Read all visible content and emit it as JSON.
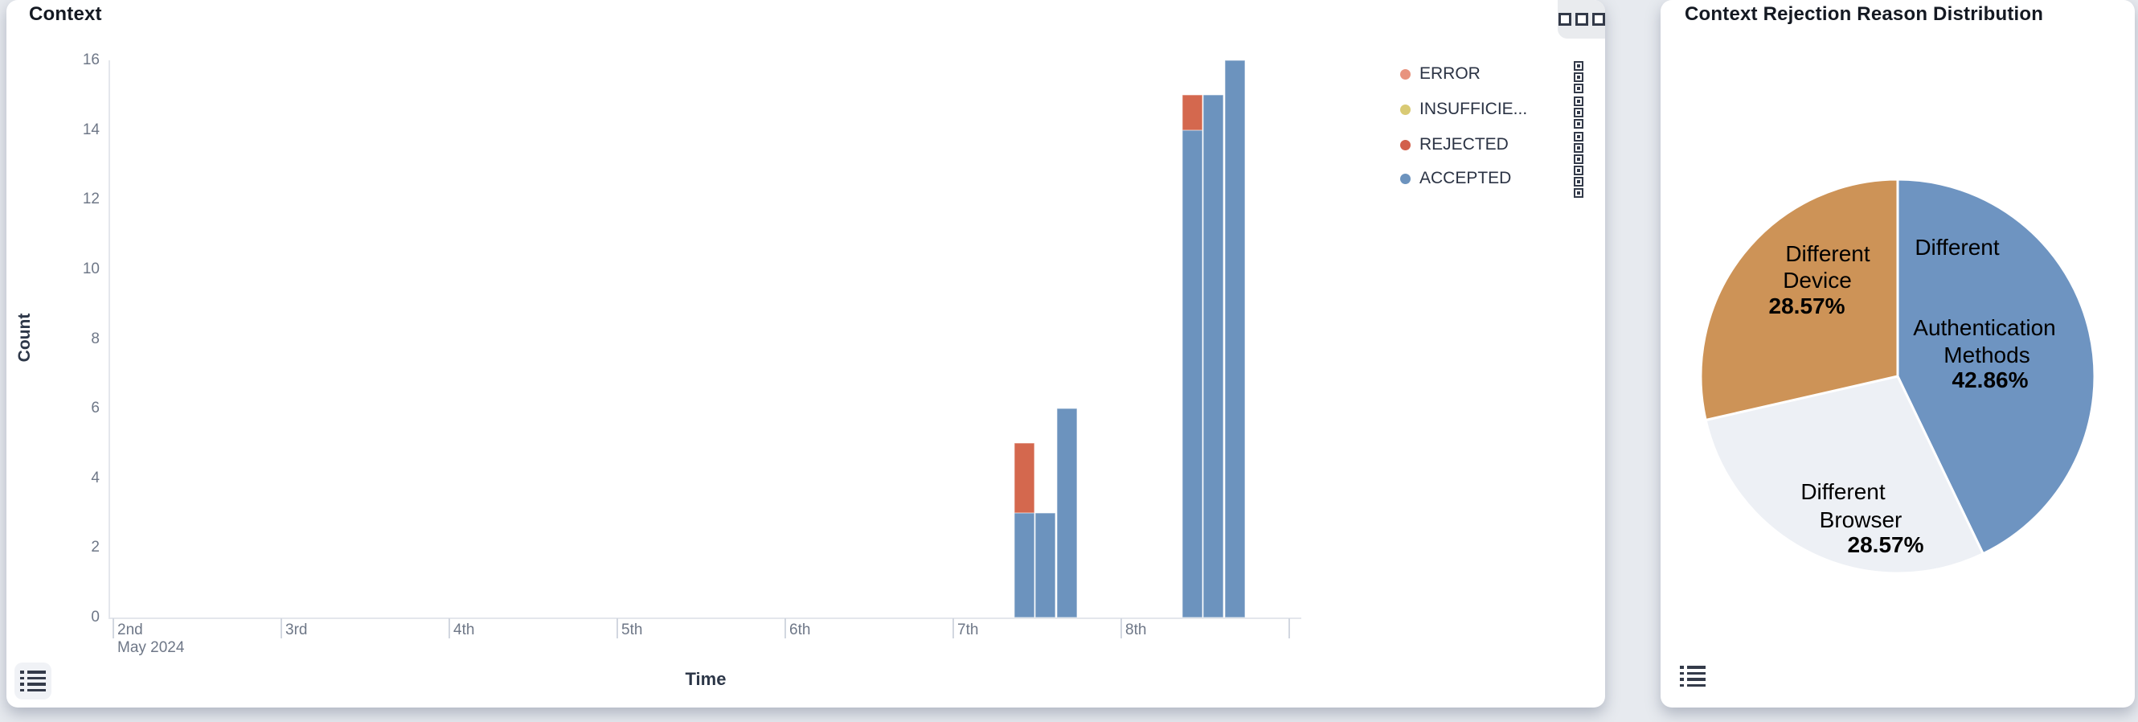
{
  "left_panel": {
    "title": "Context",
    "y_axis_label": "Count",
    "x_axis_label": "Time",
    "legend": [
      {
        "label": "ERROR",
        "color": "#e8937e"
      },
      {
        "label": "INSUFFICIE...",
        "color": "#d9ca74"
      },
      {
        "label": "REJECTED",
        "color": "#d2604b"
      },
      {
        "label": "ACCEPTED",
        "color": "#6c93be"
      }
    ]
  },
  "right_panel": {
    "title": "Context Rejection Reason Distribution",
    "labels": {
      "auth_l1": "Different",
      "auth_l2": "Authentication",
      "auth_l3": "Methods",
      "auth_pct": "42.86%",
      "device_l1": "Different",
      "device_l2": "Device",
      "device_pct": "28.57%",
      "browser_l1": "Different",
      "browser_l2": "Browser",
      "browser_pct": "28.57%"
    }
  },
  "chart_data": [
    {
      "type": "bar",
      "title": "Context",
      "stacked": true,
      "xlabel": "Time",
      "ylabel": "Count",
      "ylim": [
        0,
        16
      ],
      "yticks": [
        0,
        2,
        4,
        6,
        8,
        10,
        12,
        14,
        16
      ],
      "grid": false,
      "legend_position": "right",
      "x_ticks": [
        {
          "label": "2nd",
          "sublabel": "May 2024"
        },
        {
          "label": "3rd"
        },
        {
          "label": "4th"
        },
        {
          "label": "5th"
        },
        {
          "label": "6th"
        },
        {
          "label": "7th"
        },
        {
          "label": "8th"
        },
        {
          "label": ""
        }
      ],
      "series_colors": {
        "ERROR": "#e8937e",
        "INSUFFICIENT": "#d9ca74",
        "REJECTED": "#d4684e",
        "ACCEPTED": "#6c93be"
      },
      "bars": [
        {
          "day_index": 5,
          "day_frac": 0.37,
          "stack": [
            {
              "series": "ACCEPTED",
              "value": 3
            },
            {
              "series": "REJECTED",
              "value": 2
            }
          ]
        },
        {
          "day_index": 5,
          "day_frac": 0.495,
          "stack": [
            {
              "series": "ACCEPTED",
              "value": 3
            }
          ]
        },
        {
          "day_index": 5,
          "day_frac": 0.62,
          "stack": [
            {
              "series": "ACCEPTED",
              "value": 6
            }
          ]
        },
        {
          "day_index": 6,
          "day_frac": 0.37,
          "stack": [
            {
              "series": "ACCEPTED",
              "value": 14
            },
            {
              "series": "REJECTED",
              "value": 1
            }
          ]
        },
        {
          "day_index": 6,
          "day_frac": 0.495,
          "stack": [
            {
              "series": "ACCEPTED",
              "value": 15
            }
          ]
        },
        {
          "day_index": 6,
          "day_frac": 0.62,
          "stack": [
            {
              "series": "ACCEPTED",
              "value": 16
            }
          ]
        }
      ]
    },
    {
      "type": "pie",
      "title": "Context Rejection Reason Distribution",
      "start_angle_deg": 0,
      "direction": "clockwise",
      "slices": [
        {
          "label": "Different Authentication Methods",
          "value_pct": 42.86,
          "color": "#6e94c1"
        },
        {
          "label": "Different Browser",
          "value_pct": 28.57,
          "color": "#edf0f5"
        },
        {
          "label": "Different Device",
          "value_pct": 28.57,
          "color": "#cd9357"
        }
      ]
    }
  ]
}
